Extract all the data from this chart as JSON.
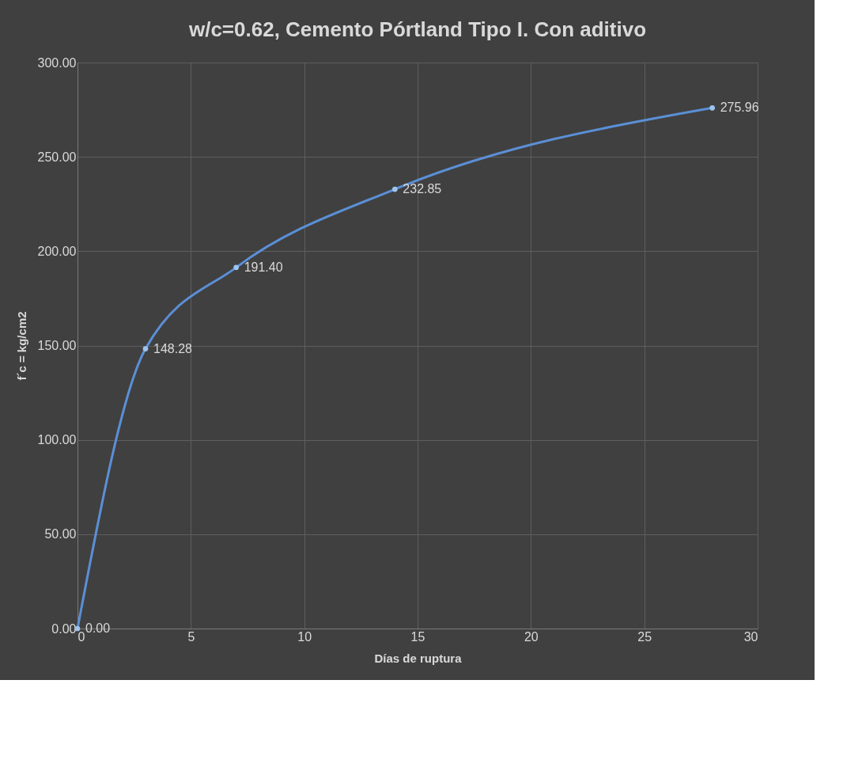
{
  "chart_data": {
    "type": "line",
    "title": "w/c=0.62, Cemento Pórtland Tipo I. Con aditivo",
    "xlabel": "Días de ruptura",
    "ylabel": "f´c = kg/cm2",
    "x": [
      0,
      3,
      7,
      14,
      28
    ],
    "series": [
      {
        "color": "#5b8fd6",
        "values": [
          0.0,
          148.28,
          191.4,
          232.85,
          275.96
        ],
        "value_labels": [
          "0.00",
          "148.28",
          "191.40",
          "232.85",
          "275.96"
        ]
      }
    ],
    "xlim": [
      0,
      30
    ],
    "xticks": [
      0,
      5,
      10,
      15,
      20,
      25,
      30
    ],
    "ylim": [
      0,
      300
    ],
    "yticks": [
      {
        "value": 0,
        "label": "0.00"
      },
      {
        "value": 50,
        "label": "50.00"
      },
      {
        "value": 100,
        "label": "100.00"
      },
      {
        "value": 150,
        "label": "150.00"
      },
      {
        "value": 200,
        "label": "200.00"
      },
      {
        "value": 250,
        "label": "250.00"
      },
      {
        "value": 300,
        "label": "300.00"
      }
    ],
    "grid": true,
    "marker": "circle",
    "line_style": "solid"
  }
}
